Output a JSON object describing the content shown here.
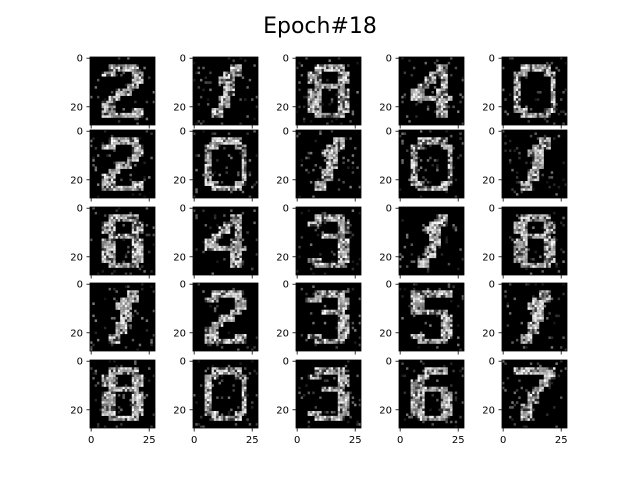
{
  "chart_data": {
    "type": "heatmap",
    "title": "Epoch#18",
    "grid": {
      "rows": 5,
      "cols": 5
    },
    "image_size": [
      28,
      28
    ],
    "colormap": "gray",
    "axes": {
      "x_ticks": [
        0,
        25
      ],
      "y_ticks": [
        0,
        20
      ],
      "x_tick_labels": [
        "0",
        "25"
      ],
      "y_tick_labels": [
        "0",
        "20"
      ],
      "xlim": [
        -0.5,
        27.5
      ],
      "ylim": [
        27.5,
        -0.5
      ]
    },
    "panels": [
      {
        "index": 1,
        "glyph": "2"
      },
      {
        "index": 2,
        "glyph": "1"
      },
      {
        "index": 3,
        "glyph": "8"
      },
      {
        "index": 4,
        "glyph": "4"
      },
      {
        "index": 5,
        "glyph": "0"
      },
      {
        "index": 6,
        "glyph": "2"
      },
      {
        "index": 7,
        "glyph": "0"
      },
      {
        "index": 8,
        "glyph": "1"
      },
      {
        "index": 9,
        "glyph": "0"
      },
      {
        "index": 10,
        "glyph": "1"
      },
      {
        "index": 11,
        "glyph": "8"
      },
      {
        "index": 12,
        "glyph": "4"
      },
      {
        "index": 13,
        "glyph": "3"
      },
      {
        "index": 14,
        "glyph": "1"
      },
      {
        "index": 15,
        "glyph": "8"
      },
      {
        "index": 16,
        "glyph": "1"
      },
      {
        "index": 17,
        "glyph": "2"
      },
      {
        "index": 18,
        "glyph": "3"
      },
      {
        "index": 19,
        "glyph": "5"
      },
      {
        "index": 20,
        "glyph": "1"
      },
      {
        "index": 21,
        "glyph": "8"
      },
      {
        "index": 22,
        "glyph": "0"
      },
      {
        "index": 23,
        "glyph": "3"
      },
      {
        "index": 24,
        "glyph": "6"
      },
      {
        "index": 25,
        "glyph": "7"
      }
    ],
    "colors": {
      "background": "#ffffff",
      "image_background": "#000000",
      "ink": "#ffffff"
    }
  }
}
